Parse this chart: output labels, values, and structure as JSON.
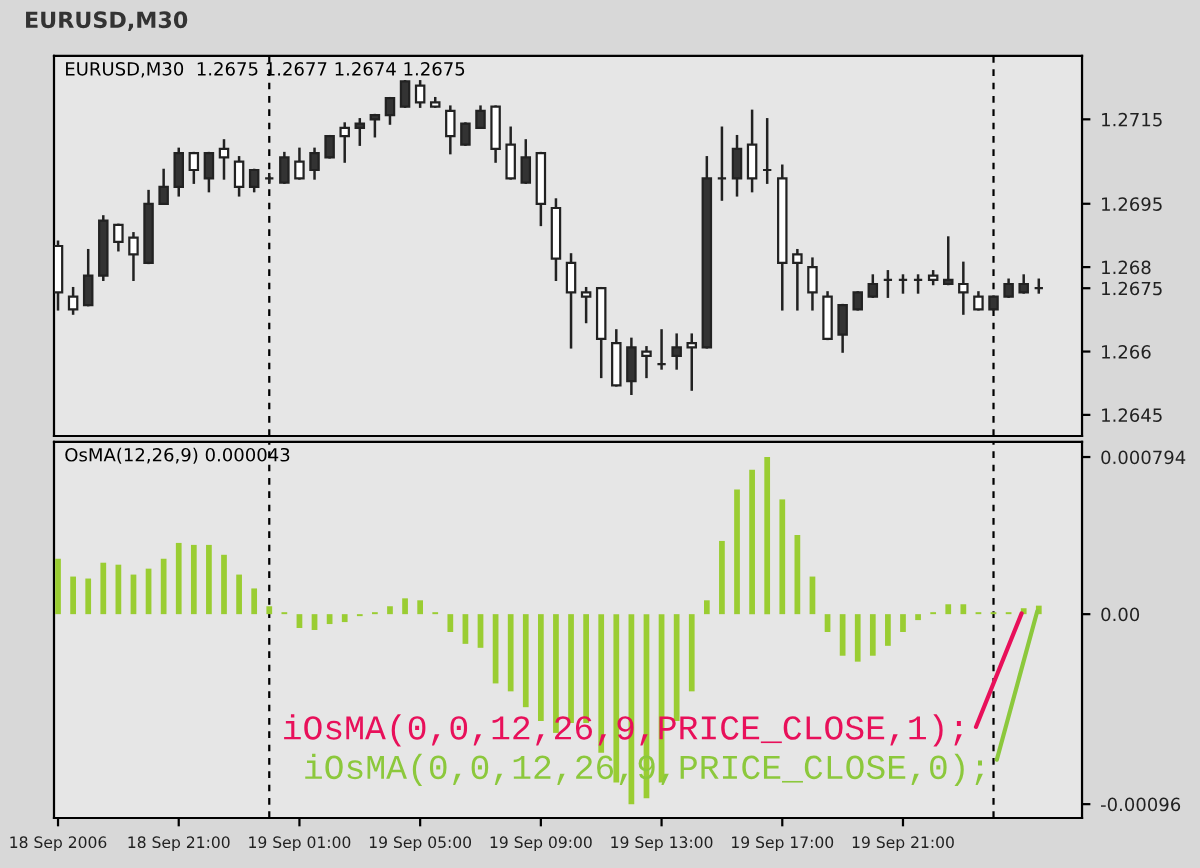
{
  "chart_data": [
    {
      "type": "candlestick",
      "title": "EURUSD,M30",
      "subtitle": "EURUSD,M30  1.2675 1.2677 1.2674 1.2675",
      "x": [
        "2006-09-18T17:00",
        "2006-09-18T17:30",
        "2006-09-18T18:00",
        "2006-09-18T18:30",
        "2006-09-18T19:00",
        "2006-09-18T19:30",
        "2006-09-18T20:00",
        "2006-09-18T20:30",
        "2006-09-18T21:00",
        "2006-09-18T21:30",
        "2006-09-18T22:00",
        "2006-09-18T22:30",
        "2006-09-18T23:00",
        "2006-09-18T23:30",
        "2006-09-19T00:00",
        "2006-09-19T00:30",
        "2006-09-19T01:00",
        "2006-09-19T01:30",
        "2006-09-19T02:00",
        "2006-09-19T02:30",
        "2006-09-19T03:00",
        "2006-09-19T03:30",
        "2006-09-19T04:00",
        "2006-09-19T04:30",
        "2006-09-19T05:00",
        "2006-09-19T05:30",
        "2006-09-19T06:00",
        "2006-09-19T06:30",
        "2006-09-19T07:00",
        "2006-09-19T07:30",
        "2006-09-19T08:00",
        "2006-09-19T08:30",
        "2006-09-19T09:00",
        "2006-09-19T09:30",
        "2006-09-19T10:00",
        "2006-09-19T10:30",
        "2006-09-19T11:00",
        "2006-09-19T11:30",
        "2006-09-19T12:00",
        "2006-09-19T12:30",
        "2006-09-19T13:00",
        "2006-09-19T13:30",
        "2006-09-19T14:00",
        "2006-09-19T14:30",
        "2006-09-19T15:00",
        "2006-09-19T15:30",
        "2006-09-19T16:00",
        "2006-09-19T16:30",
        "2006-09-19T17:00",
        "2006-09-19T17:30",
        "2006-09-19T18:00",
        "2006-09-19T18:30",
        "2006-09-19T19:00",
        "2006-09-19T19:30",
        "2006-09-19T20:00",
        "2006-09-19T20:30",
        "2006-09-19T21:00",
        "2006-09-19T21:30",
        "2006-09-19T22:00",
        "2006-09-19T22:30",
        "2006-09-19T23:00",
        "2006-09-19T23:30",
        "2006-09-20T00:00",
        "2006-09-20T00:30",
        "2006-09-20T01:00",
        "2006-09-20T01:30"
      ],
      "ohlc": [
        [
          1.2685,
          1.2686,
          1.267,
          1.2674
        ],
        [
          1.2673,
          1.2675,
          1.2669,
          1.267
        ],
        [
          1.2671,
          1.2684,
          1.2671,
          1.2678
        ],
        [
          1.2678,
          1.2692,
          1.2677,
          1.2691
        ],
        [
          1.269,
          1.269,
          1.2684,
          1.2686
        ],
        [
          1.2687,
          1.2688,
          1.2677,
          1.2683
        ],
        [
          1.2681,
          1.2698,
          1.2681,
          1.2695
        ],
        [
          1.2695,
          1.2703,
          1.2695,
          1.2699
        ],
        [
          1.2699,
          1.2708,
          1.2697,
          1.2707
        ],
        [
          1.2707,
          1.2707,
          1.27,
          1.2703
        ],
        [
          1.2701,
          1.2707,
          1.2698,
          1.2707
        ],
        [
          1.2708,
          1.271,
          1.2701,
          1.2706
        ],
        [
          1.2705,
          1.2706,
          1.2697,
          1.2699
        ],
        [
          1.2699,
          1.2703,
          1.2698,
          1.2703
        ],
        [
          1.2701,
          1.2702,
          1.27,
          1.2701
        ],
        [
          1.27,
          1.2707,
          1.27,
          1.2706
        ],
        [
          1.2705,
          1.2708,
          1.2701,
          1.2701
        ],
        [
          1.2703,
          1.2708,
          1.2701,
          1.2707
        ],
        [
          1.2706,
          1.2711,
          1.2706,
          1.2711
        ],
        [
          1.2713,
          1.2714,
          1.2705,
          1.2711
        ],
        [
          1.2713,
          1.2715,
          1.2709,
          1.2714
        ],
        [
          1.2715,
          1.2716,
          1.2711,
          1.2716
        ],
        [
          1.2716,
          1.272,
          1.2714,
          1.272
        ],
        [
          1.2718,
          1.2724,
          1.2718,
          1.2724
        ],
        [
          1.2723,
          1.2724,
          1.2718,
          1.2719
        ],
        [
          1.2719,
          1.272,
          1.2718,
          1.2718
        ],
        [
          1.2717,
          1.2718,
          1.2707,
          1.2711
        ],
        [
          1.2709,
          1.2714,
          1.2709,
          1.2714
        ],
        [
          1.2713,
          1.2718,
          1.2713,
          1.2717
        ],
        [
          1.2718,
          1.2718,
          1.2705,
          1.2708
        ],
        [
          1.2709,
          1.2713,
          1.2701,
          1.2701
        ],
        [
          1.27,
          1.271,
          1.27,
          1.2706
        ],
        [
          1.2707,
          1.2707,
          1.269,
          1.2695
        ],
        [
          1.2694,
          1.2696,
          1.2677,
          1.2682
        ],
        [
          1.2681,
          1.2683,
          1.2661,
          1.2674
        ],
        [
          1.2674,
          1.2675,
          1.2667,
          1.2673
        ],
        [
          1.2675,
          1.2675,
          1.2654,
          1.2663
        ],
        [
          1.2662,
          1.2665,
          1.2652,
          1.2652
        ],
        [
          1.2653,
          1.2663,
          1.265,
          1.2661
        ],
        [
          1.266,
          1.2661,
          1.2654,
          1.2659
        ],
        [
          1.2657,
          1.2665,
          1.2656,
          1.2657
        ],
        [
          1.2659,
          1.2664,
          1.2656,
          1.2661
        ],
        [
          1.2662,
          1.2664,
          1.2651,
          1.2661
        ],
        [
          1.2661,
          1.2706,
          1.2661,
          1.2701
        ],
        [
          1.2701,
          1.2713,
          1.2696,
          1.2701
        ],
        [
          1.2701,
          1.2711,
          1.2697,
          1.2708
        ],
        [
          1.2709,
          1.2717,
          1.2698,
          1.2701
        ],
        [
          1.2703,
          1.2715,
          1.27,
          1.2703
        ],
        [
          1.2701,
          1.2704,
          1.267,
          1.2681
        ],
        [
          1.2683,
          1.2684,
          1.267,
          1.2681
        ],
        [
          1.268,
          1.2682,
          1.267,
          1.2674
        ],
        [
          1.2673,
          1.2674,
          1.2663,
          1.2663
        ],
        [
          1.2664,
          1.2671,
          1.266,
          1.2671
        ],
        [
          1.267,
          1.2674,
          1.267,
          1.2674
        ],
        [
          1.2673,
          1.2678,
          1.2673,
          1.2676
        ],
        [
          1.2677,
          1.2679,
          1.2673,
          1.2677
        ],
        [
          1.2677,
          1.2678,
          1.2674,
          1.2677
        ],
        [
          1.2677,
          1.2678,
          1.2674,
          1.2677
        ],
        [
          1.2678,
          1.2679,
          1.2676,
          1.2677
        ],
        [
          1.2676,
          1.2687,
          1.2676,
          1.2677
        ],
        [
          1.2676,
          1.2681,
          1.2669,
          1.2674
        ],
        [
          1.2673,
          1.2674,
          1.267,
          1.267
        ],
        [
          1.267,
          1.2673,
          1.267,
          1.2673
        ],
        [
          1.2673,
          1.2677,
          1.2673,
          1.2676
        ],
        [
          1.2674,
          1.2678,
          1.2674,
          1.2676
        ],
        [
          1.2675,
          1.2677,
          1.2674,
          1.2675
        ]
      ],
      "xlim": [
        "2006-09-18T16:52",
        "2006-09-20T02:56"
      ],
      "ylim": [
        1.264,
        1.273
      ],
      "yticks": [
        1.2645,
        1.266,
        1.2675,
        1.268,
        1.2695,
        1.2715
      ],
      "ref_lines": [
        {
          "axis": "x",
          "value": "2006-09-19T00:00",
          "color": "#000000",
          "line_style": "dashed"
        },
        {
          "axis": "x",
          "value": "2006-09-20T00:00",
          "color": "#000000",
          "line_style": "dashed"
        }
      ],
      "tick_labels": "y",
      "grid": false,
      "legend": false
    },
    {
      "type": "bar",
      "title": "OsMA(12,26,9) 0.000043",
      "color": "#9acd32",
      "x": [
        "2006-09-18T17:00",
        "2006-09-18T17:30",
        "2006-09-18T18:00",
        "2006-09-18T18:30",
        "2006-09-18T19:00",
        "2006-09-18T19:30",
        "2006-09-18T20:00",
        "2006-09-18T20:30",
        "2006-09-18T21:00",
        "2006-09-18T21:30",
        "2006-09-18T22:00",
        "2006-09-18T22:30",
        "2006-09-18T23:00",
        "2006-09-18T23:30",
        "2006-09-19T00:00",
        "2006-09-19T00:30",
        "2006-09-19T01:00",
        "2006-09-19T01:30",
        "2006-09-19T02:00",
        "2006-09-19T02:30",
        "2006-09-19T03:00",
        "2006-09-19T03:30",
        "2006-09-19T04:00",
        "2006-09-19T04:30",
        "2006-09-19T05:00",
        "2006-09-19T05:30",
        "2006-09-19T06:00",
        "2006-09-19T06:30",
        "2006-09-19T07:00",
        "2006-09-19T07:30",
        "2006-09-19T08:00",
        "2006-09-19T08:30",
        "2006-09-19T09:00",
        "2006-09-19T09:30",
        "2006-09-19T10:00",
        "2006-09-19T10:30",
        "2006-09-19T11:00",
        "2006-09-19T11:30",
        "2006-09-19T12:00",
        "2006-09-19T12:30",
        "2006-09-19T13:00",
        "2006-09-19T13:30",
        "2006-09-19T14:00",
        "2006-09-19T14:30",
        "2006-09-19T15:00",
        "2006-09-19T15:30",
        "2006-09-19T16:00",
        "2006-09-19T16:30",
        "2006-09-19T17:00",
        "2006-09-19T17:30",
        "2006-09-19T18:00",
        "2006-09-19T18:30",
        "2006-09-19T19:00",
        "2006-09-19T19:30",
        "2006-09-19T20:00",
        "2006-09-19T20:30",
        "2006-09-19T21:00",
        "2006-09-19T21:30",
        "2006-09-19T22:00",
        "2006-09-19T22:30",
        "2006-09-19T23:00",
        "2006-09-19T23:30",
        "2006-09-20T00:00",
        "2006-09-20T00:30",
        "2006-09-20T01:00",
        "2006-09-20T01:30"
      ],
      "values": [
        0.00028,
        0.00019,
        0.00018,
        0.00026,
        0.00025,
        0.0002,
        0.00023,
        0.00028,
        0.00036,
        0.00035,
        0.00035,
        0.0003,
        0.0002,
        0.00013,
        4e-05,
        1e-05,
        -7e-05,
        -8e-05,
        -5e-05,
        -4e-05,
        -1e-05,
        1e-05,
        4e-05,
        8e-05,
        7e-05,
        1e-05,
        -9e-05,
        -0.00015,
        -0.00017,
        -0.00035,
        -0.00039,
        -0.00047,
        -0.00054,
        -0.0006,
        -0.00055,
        -0.00055,
        -0.0007,
        -0.00085,
        -0.00096,
        -0.00093,
        -0.00085,
        -0.00054,
        -0.00039,
        7e-05,
        0.00037,
        0.00063,
        0.00073,
        0.000794,
        0.00058,
        0.0004,
        0.00019,
        -9e-05,
        -0.00021,
        -0.00024,
        -0.00021,
        -0.00016,
        -9e-05,
        -3e-05,
        1e-05,
        5e-05,
        5e-05,
        1e-05,
        1e-05,
        1e-05,
        3e-05,
        4.3e-05
      ],
      "xlim": [
        "2006-09-18T16:52",
        "2006-09-20T02:56"
      ],
      "ylim": [
        -0.00103,
        0.00087
      ],
      "xticks": [
        {
          "value": "2006-09-18T17:00",
          "label": "18 Sep 2006"
        },
        {
          "value": "2006-09-18T21:00",
          "label": "18 Sep 21:00"
        },
        {
          "value": "2006-09-19T01:00",
          "label": "19 Sep 01:00"
        },
        {
          "value": "2006-09-19T05:00",
          "label": "19 Sep 05:00"
        },
        {
          "value": "2006-09-19T09:00",
          "label": "19 Sep 09:00"
        },
        {
          "value": "2006-09-19T13:00",
          "label": "19 Sep 13:00"
        },
        {
          "value": "2006-09-19T17:00",
          "label": "19 Sep 17:00"
        },
        {
          "value": "2006-09-19T21:00",
          "label": "19 Sep 21:00"
        }
      ],
      "yticks": [
        {
          "value": 0.000794,
          "label": "0.000794"
        },
        {
          "value": 0,
          "label": "0.00"
        },
        {
          "value": -0.00096,
          "label": "-0.00096"
        }
      ],
      "ref_lines": [
        {
          "axis": "x",
          "value": "2006-09-19T00:00",
          "color": "#000000",
          "line_style": "dashed"
        },
        {
          "axis": "x",
          "value": "2006-09-20T00:00",
          "color": "#000000",
          "line_style": "dashed"
        }
      ],
      "annotations": [
        {
          "text": "iOsMA(0,0,12,26,9,PRICE_CLOSE,1);",
          "x": "2006-09-20T01:00",
          "y": 3e-05
        },
        {
          "text": "iOsMA(0,0,12,26,9,PRICE_CLOSE,0);",
          "x": "2006-09-20T01:30",
          "y": 4.3e-05
        }
      ],
      "grid": false,
      "legend": false
    }
  ]
}
